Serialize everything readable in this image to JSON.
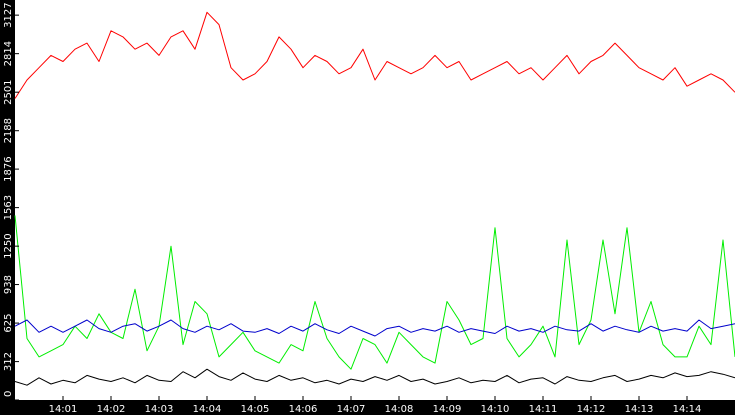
{
  "chart_data": {
    "type": "line",
    "title": "",
    "xlabel": "",
    "ylabel": "",
    "ylim": [
      0,
      3250
    ],
    "yticks": [
      0,
      312,
      625,
      938,
      1250,
      1563,
      1876,
      2188,
      2501,
      2814,
      3127
    ],
    "xlim": [
      "14:00:00",
      "14:15:00"
    ],
    "xticks": [
      "14:01",
      "14:02",
      "14:03",
      "14:04",
      "14:05",
      "14:06",
      "14:07",
      "14:08",
      "14:09",
      "14:10",
      "14:11",
      "14:12",
      "14:13",
      "14:14"
    ],
    "grid": false,
    "legend": "none",
    "series": [
      {
        "color": "#ff0000",
        "x": [
          "14:00:00",
          "14:00:15",
          "14:00:30",
          "14:00:45",
          "14:01:00",
          "14:01:15",
          "14:01:30",
          "14:01:45",
          "14:02:00",
          "14:02:15",
          "14:02:30",
          "14:02:45",
          "14:03:00",
          "14:03:15",
          "14:03:30",
          "14:03:45",
          "14:04:00",
          "14:04:15",
          "14:04:30",
          "14:04:45",
          "14:05:00",
          "14:05:15",
          "14:05:30",
          "14:05:45",
          "14:06:00",
          "14:06:15",
          "14:06:30",
          "14:06:45",
          "14:07:00",
          "14:07:15",
          "14:07:30",
          "14:07:45",
          "14:08:00",
          "14:08:15",
          "14:08:30",
          "14:08:45",
          "14:09:00",
          "14:09:15",
          "14:09:30",
          "14:09:45",
          "14:10:00",
          "14:10:15",
          "14:10:30",
          "14:10:45",
          "14:11:00",
          "14:11:15",
          "14:11:30",
          "14:11:45",
          "14:12:00",
          "14:12:15",
          "14:12:30",
          "14:12:45",
          "14:13:00",
          "14:13:15",
          "14:13:30",
          "14:13:45",
          "14:14:00",
          "14:14:15",
          "14:14:30",
          "14:14:45",
          "14:15:00"
        ],
        "values": [
          2450,
          2600,
          2700,
          2800,
          2750,
          2850,
          2900,
          2750,
          3000,
          2950,
          2850,
          2900,
          2800,
          2950,
          3000,
          2850,
          3150,
          3050,
          2700,
          2600,
          2650,
          2750,
          2950,
          2850,
          2700,
          2800,
          2750,
          2650,
          2700,
          2850,
          2600,
          2750,
          2700,
          2650,
          2700,
          2800,
          2700,
          2750,
          2600,
          2650,
          2700,
          2750,
          2650,
          2700,
          2600,
          2700,
          2800,
          2650,
          2750,
          2800,
          2900,
          2800,
          2700,
          2650,
          2600,
          2700,
          2550,
          2600,
          2650,
          2600,
          2500
        ]
      },
      {
        "color": "#00ee00",
        "x": [
          "14:00:00",
          "14:00:15",
          "14:00:30",
          "14:00:45",
          "14:01:00",
          "14:01:15",
          "14:01:30",
          "14:01:45",
          "14:02:00",
          "14:02:15",
          "14:02:30",
          "14:02:45",
          "14:03:00",
          "14:03:15",
          "14:03:30",
          "14:03:45",
          "14:04:00",
          "14:04:15",
          "14:04:30",
          "14:04:45",
          "14:05:00",
          "14:05:15",
          "14:05:30",
          "14:05:45",
          "14:06:00",
          "14:06:15",
          "14:06:30",
          "14:06:45",
          "14:07:00",
          "14:07:15",
          "14:07:30",
          "14:07:45",
          "14:08:00",
          "14:08:15",
          "14:08:30",
          "14:08:45",
          "14:09:00",
          "14:09:15",
          "14:09:30",
          "14:09:45",
          "14:10:00",
          "14:10:15",
          "14:10:30",
          "14:10:45",
          "14:11:00",
          "14:11:15",
          "14:11:30",
          "14:11:45",
          "14:12:00",
          "14:12:15",
          "14:12:30",
          "14:12:45",
          "14:13:00",
          "14:13:15",
          "14:13:30",
          "14:13:45",
          "14:14:00",
          "14:14:15",
          "14:14:30",
          "14:14:45",
          "14:15:00"
        ],
        "values": [
          1500,
          500,
          350,
          400,
          450,
          600,
          500,
          700,
          550,
          500,
          900,
          400,
          600,
          1250,
          450,
          800,
          700,
          350,
          450,
          550,
          400,
          350,
          300,
          450,
          400,
          800,
          500,
          350,
          250,
          500,
          450,
          300,
          550,
          450,
          350,
          300,
          800,
          650,
          450,
          500,
          1400,
          500,
          350,
          450,
          600,
          350,
          1300,
          450,
          650,
          1300,
          700,
          1400,
          550,
          800,
          450,
          350,
          350,
          600,
          450,
          1300,
          350
        ]
      },
      {
        "color": "#0000cc",
        "x": [
          "14:00:00",
          "14:00:15",
          "14:00:30",
          "14:00:45",
          "14:01:00",
          "14:01:15",
          "14:01:30",
          "14:01:45",
          "14:02:00",
          "14:02:15",
          "14:02:30",
          "14:02:45",
          "14:03:00",
          "14:03:15",
          "14:03:30",
          "14:03:45",
          "14:04:00",
          "14:04:15",
          "14:04:30",
          "14:04:45",
          "14:05:00",
          "14:05:15",
          "14:05:30",
          "14:05:45",
          "14:06:00",
          "14:06:15",
          "14:06:30",
          "14:06:45",
          "14:07:00",
          "14:07:15",
          "14:07:30",
          "14:07:45",
          "14:08:00",
          "14:08:15",
          "14:08:30",
          "14:08:45",
          "14:09:00",
          "14:09:15",
          "14:09:30",
          "14:09:45",
          "14:10:00",
          "14:10:15",
          "14:10:30",
          "14:10:45",
          "14:11:00",
          "14:11:15",
          "14:11:30",
          "14:11:45",
          "14:12:00",
          "14:12:15",
          "14:12:30",
          "14:12:45",
          "14:13:00",
          "14:13:15",
          "14:13:30",
          "14:13:45",
          "14:14:00",
          "14:14:15",
          "14:14:30",
          "14:14:45",
          "14:15:00"
        ],
        "values": [
          600,
          650,
          550,
          600,
          550,
          600,
          650,
          580,
          550,
          600,
          620,
          560,
          600,
          650,
          580,
          550,
          600,
          570,
          620,
          560,
          550,
          580,
          540,
          600,
          560,
          620,
          570,
          540,
          600,
          560,
          520,
          580,
          600,
          550,
          580,
          560,
          600,
          550,
          580,
          560,
          540,
          600,
          560,
          580,
          550,
          600,
          570,
          560,
          620,
          560,
          600,
          570,
          550,
          600,
          560,
          580,
          560,
          650,
          580,
          600,
          620
        ]
      },
      {
        "color": "#000000",
        "x": [
          "14:00:00",
          "14:00:15",
          "14:00:30",
          "14:00:45",
          "14:01:00",
          "14:01:15",
          "14:01:30",
          "14:01:45",
          "14:02:00",
          "14:02:15",
          "14:02:30",
          "14:02:45",
          "14:03:00",
          "14:03:15",
          "14:03:30",
          "14:03:45",
          "14:04:00",
          "14:04:15",
          "14:04:30",
          "14:04:45",
          "14:05:00",
          "14:05:15",
          "14:05:30",
          "14:05:45",
          "14:06:00",
          "14:06:15",
          "14:06:30",
          "14:06:45",
          "14:07:00",
          "14:07:15",
          "14:07:30",
          "14:07:45",
          "14:08:00",
          "14:08:15",
          "14:08:30",
          "14:08:45",
          "14:09:00",
          "14:09:15",
          "14:09:30",
          "14:09:45",
          "14:10:00",
          "14:10:15",
          "14:10:30",
          "14:10:45",
          "14:11:00",
          "14:11:15",
          "14:11:30",
          "14:11:45",
          "14:12:00",
          "14:12:15",
          "14:12:30",
          "14:12:45",
          "14:13:00",
          "14:13:15",
          "14:13:30",
          "14:13:45",
          "14:14:00",
          "14:14:15",
          "14:14:30",
          "14:14:45",
          "14:15:00"
        ],
        "values": [
          150,
          120,
          180,
          130,
          160,
          140,
          200,
          170,
          150,
          180,
          140,
          200,
          160,
          150,
          230,
          180,
          250,
          190,
          160,
          220,
          170,
          150,
          200,
          160,
          180,
          140,
          160,
          130,
          170,
          150,
          190,
          160,
          200,
          150,
          170,
          130,
          150,
          180,
          140,
          160,
          150,
          200,
          140,
          170,
          180,
          130,
          190,
          160,
          150,
          180,
          200,
          150,
          170,
          200,
          180,
          220,
          190,
          200,
          230,
          210,
          180
        ]
      }
    ]
  }
}
